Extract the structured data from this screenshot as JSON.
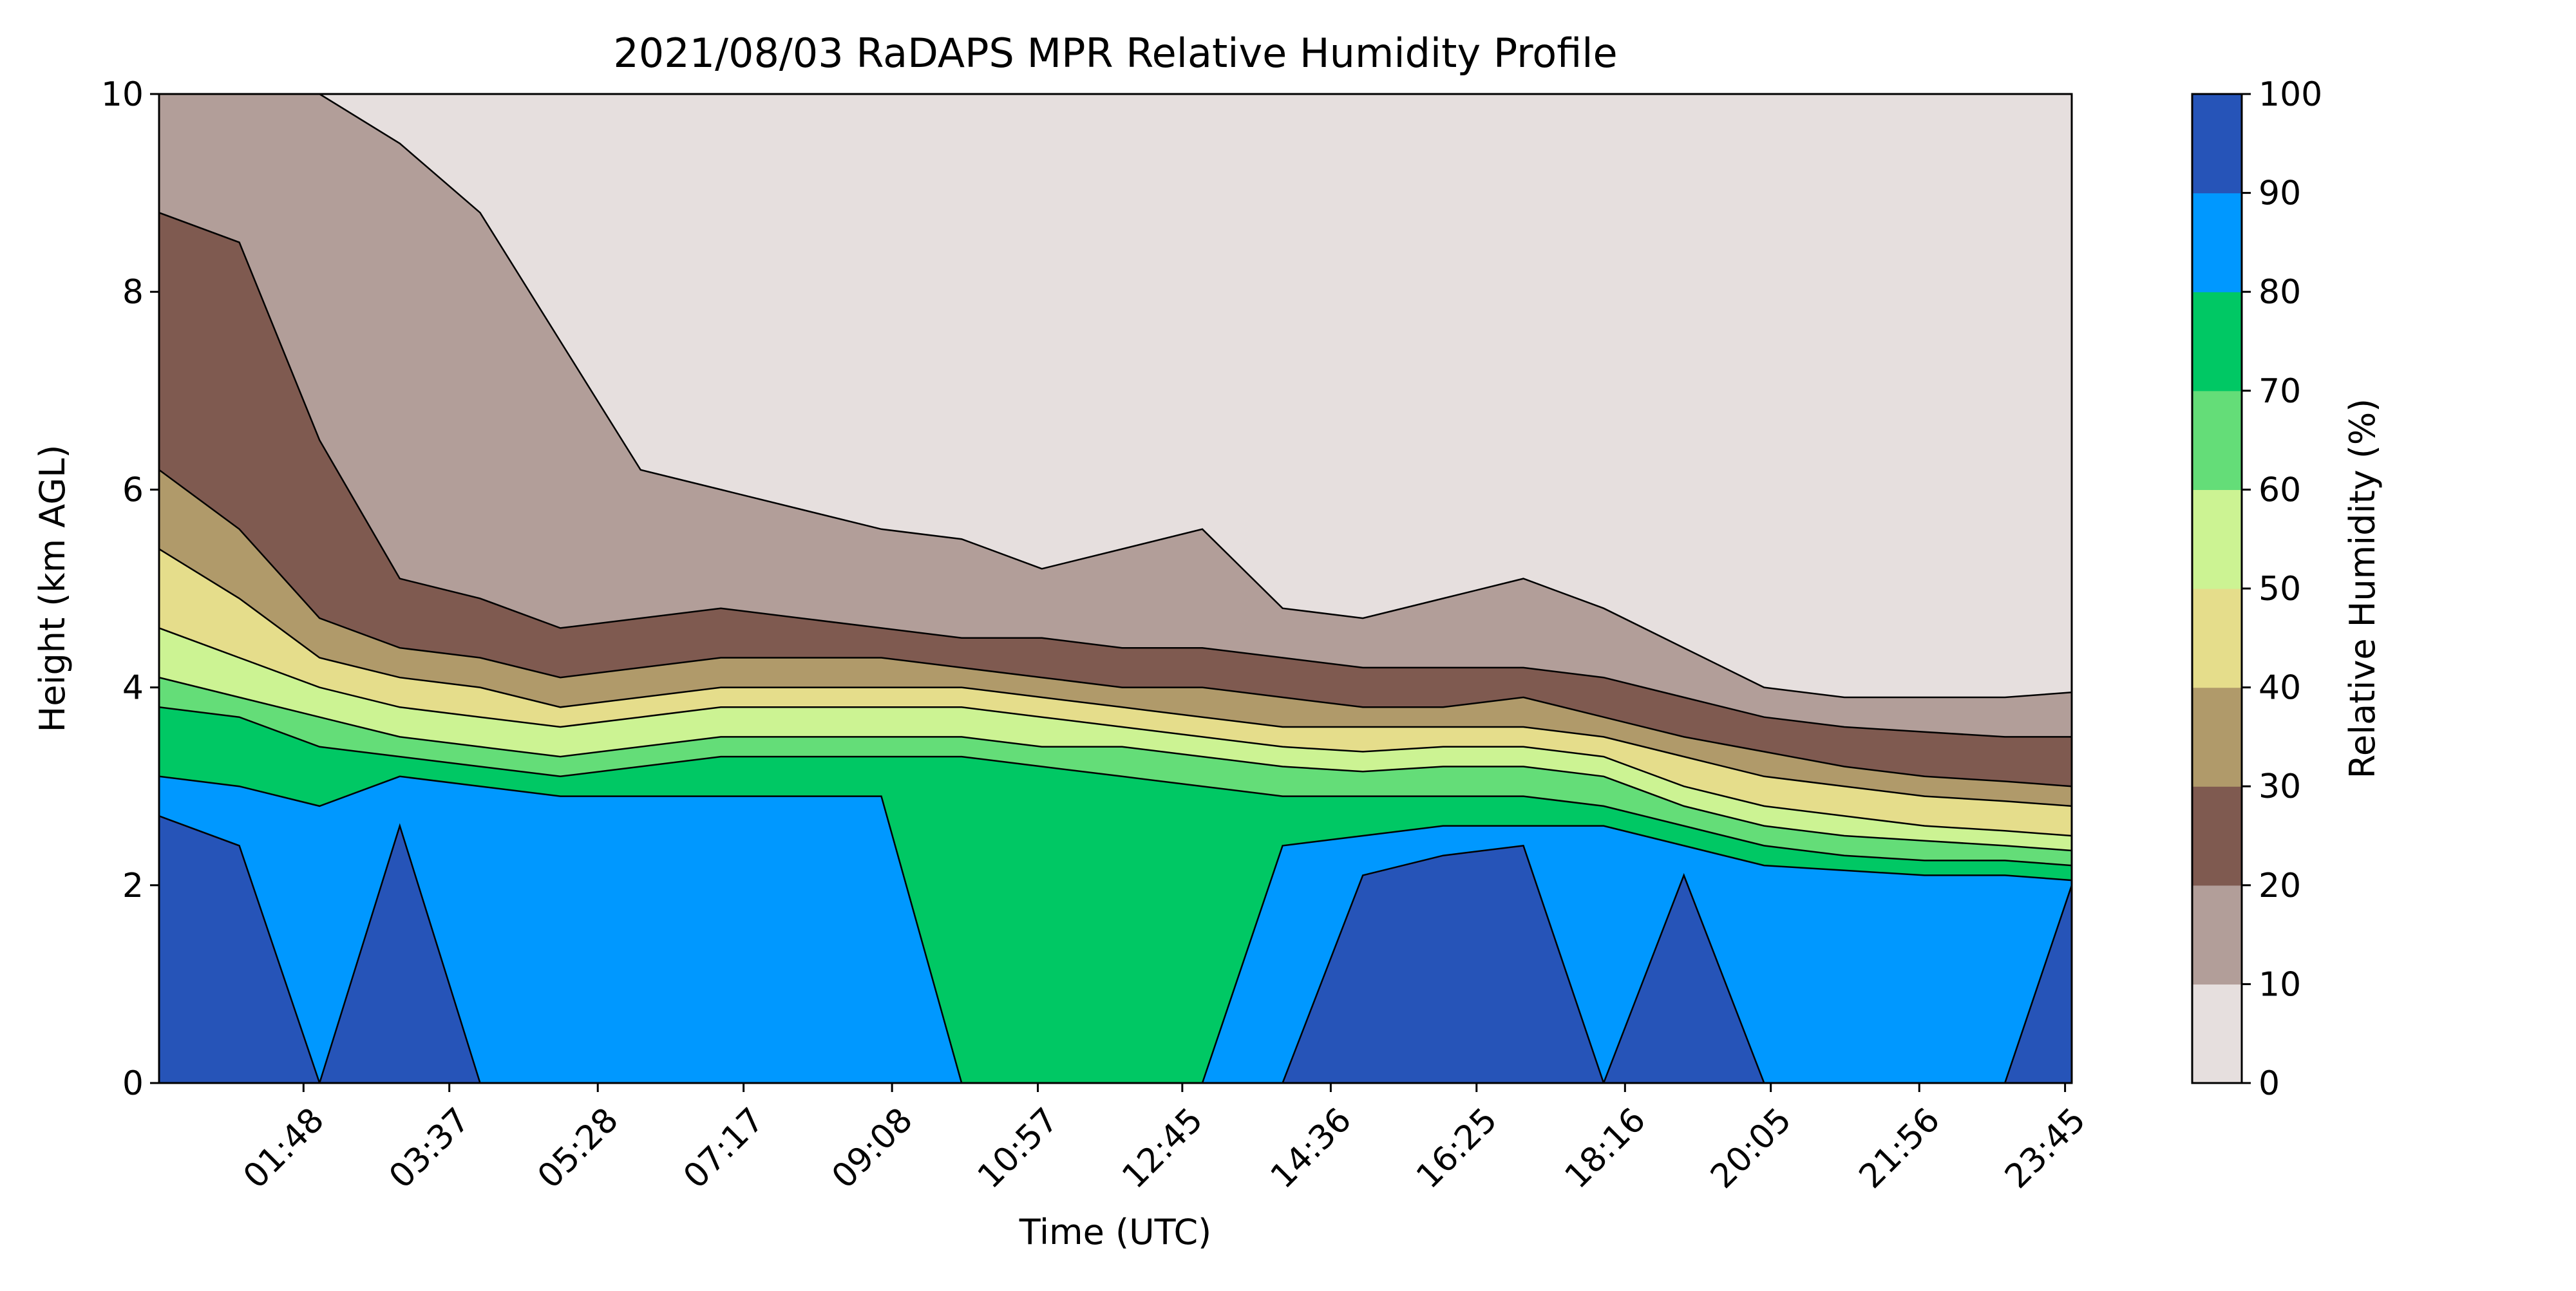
{
  "chart_data": {
    "type": "heatmap",
    "title": "2021/08/03 RaDAPS MPR Relative Humidity Profile",
    "xlabel": "Time (UTC)",
    "ylabel": "Height (km AGL)",
    "colorbar_label": "Relative Humidity (%)",
    "x_ticks": [
      "01:48",
      "03:37",
      "05:28",
      "07:17",
      "09:08",
      "10:57",
      "12:45",
      "14:36",
      "16:25",
      "18:16",
      "20:05",
      "21:56",
      "23:45"
    ],
    "x_range": [
      "00:00",
      "23:50"
    ],
    "y_ticks": [
      "0",
      "2",
      "4",
      "6",
      "8",
      "10"
    ],
    "ylim": [
      0,
      10
    ],
    "levels": [
      0,
      10,
      20,
      30,
      40,
      50,
      60,
      70,
      80,
      90,
      100
    ],
    "level_labels": [
      "0",
      "10",
      "20",
      "30",
      "40",
      "50",
      "60",
      "70",
      "80",
      "90",
      "100"
    ],
    "level_colors": [
      "#e6dfde",
      "#b29e99",
      "#7f5a50",
      "#b09a6a",
      "#e5dd8b",
      "#ccf393",
      "#64dd78",
      "#00c864",
      "#0098ff",
      "#2654b8"
    ],
    "times": [
      "00:00",
      "01:00",
      "02:00",
      "03:00",
      "04:00",
      "05:00",
      "06:00",
      "07:00",
      "08:00",
      "09:00",
      "10:00",
      "11:00",
      "12:00",
      "13:00",
      "14:00",
      "15:00",
      "16:00",
      "17:00",
      "18:00",
      "19:00",
      "20:00",
      "21:00",
      "22:00",
      "23:00",
      "23:50"
    ],
    "contour_heights_km": [
      {
        "rh": 10,
        "heights": [
          10,
          10,
          10,
          9.5,
          8.8,
          7.5,
          6.2,
          6.0,
          5.8,
          5.6,
          5.5,
          5.2,
          5.4,
          5.6,
          4.8,
          4.7,
          4.9,
          5.1,
          4.8,
          4.4,
          4.0,
          3.9,
          3.9,
          3.9,
          3.95
        ]
      },
      {
        "rh": 20,
        "heights": [
          8.8,
          8.5,
          6.5,
          5.1,
          4.9,
          4.6,
          4.7,
          4.8,
          4.7,
          4.6,
          4.5,
          4.5,
          4.4,
          4.4,
          4.3,
          4.2,
          4.2,
          4.2,
          4.1,
          3.9,
          3.7,
          3.6,
          3.55,
          3.5,
          3.5
        ]
      },
      {
        "rh": 30,
        "heights": [
          6.2,
          5.6,
          4.7,
          4.4,
          4.3,
          4.1,
          4.2,
          4.3,
          4.3,
          4.3,
          4.2,
          4.1,
          4.0,
          4.0,
          3.9,
          3.8,
          3.8,
          3.9,
          3.7,
          3.5,
          3.35,
          3.2,
          3.1,
          3.05,
          3.0
        ]
      },
      {
        "rh": 40,
        "heights": [
          5.4,
          4.9,
          4.3,
          4.1,
          4.0,
          3.8,
          3.9,
          4.0,
          4.0,
          4.0,
          4.0,
          3.9,
          3.8,
          3.7,
          3.6,
          3.6,
          3.6,
          3.6,
          3.5,
          3.3,
          3.1,
          3.0,
          2.9,
          2.85,
          2.8
        ]
      },
      {
        "rh": 50,
        "heights": [
          4.6,
          4.3,
          4.0,
          3.8,
          3.7,
          3.6,
          3.7,
          3.8,
          3.8,
          3.8,
          3.8,
          3.7,
          3.6,
          3.5,
          3.4,
          3.35,
          3.4,
          3.4,
          3.3,
          3.0,
          2.8,
          2.7,
          2.6,
          2.55,
          2.5
        ]
      },
      {
        "rh": 60,
        "heights": [
          4.1,
          3.9,
          3.7,
          3.5,
          3.4,
          3.3,
          3.4,
          3.5,
          3.5,
          3.5,
          3.5,
          3.4,
          3.4,
          3.3,
          3.2,
          3.15,
          3.2,
          3.2,
          3.1,
          2.8,
          2.6,
          2.5,
          2.45,
          2.4,
          2.35
        ]
      },
      {
        "rh": 70,
        "heights": [
          3.8,
          3.7,
          3.4,
          3.3,
          3.2,
          3.1,
          3.2,
          3.3,
          3.3,
          3.3,
          3.3,
          3.2,
          3.1,
          3.0,
          2.9,
          2.9,
          2.9,
          2.9,
          2.8,
          2.6,
          2.4,
          2.3,
          2.25,
          2.25,
          2.2
        ]
      },
      {
        "rh": 80,
        "heights": [
          3.1,
          3.0,
          2.8,
          3.1,
          3.0,
          2.9,
          2.9,
          2.9,
          2.9,
          2.9,
          0,
          0,
          0,
          0,
          2.4,
          2.5,
          2.6,
          2.6,
          2.6,
          2.4,
          2.2,
          2.15,
          2.1,
          2.1,
          2.05
        ]
      },
      {
        "rh": 90,
        "heights": [
          2.7,
          2.4,
          0,
          2.6,
          0,
          0,
          0,
          0,
          0,
          0,
          0,
          0,
          0,
          0,
          0,
          2.1,
          2.3,
          2.4,
          0,
          2.1,
          0,
          0,
          0,
          0,
          2.0
        ]
      }
    ]
  }
}
